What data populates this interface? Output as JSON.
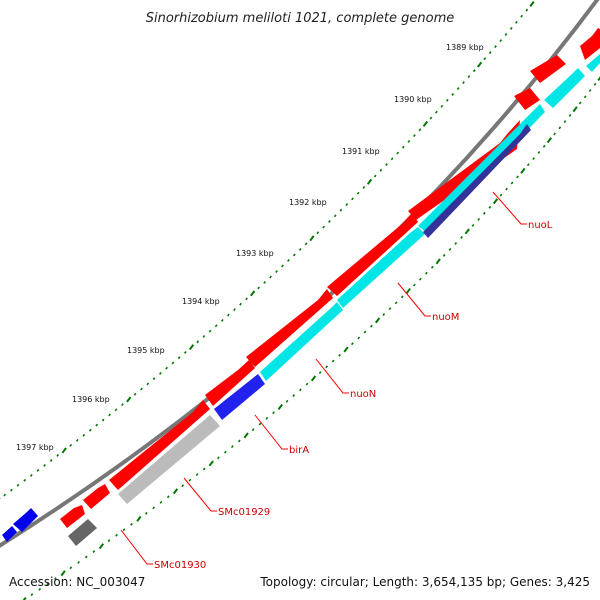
{
  "title": "Sinorhizobium meliloti 1021, complete genome",
  "footer": {
    "accession": "Accession: NC_003047",
    "topology": "Topology: circular; Length: 3,654,135 bp; Genes: 3,425"
  },
  "colors": {
    "backbone": "#777777",
    "forward_gene": "#ff0000",
    "cds_feature": "#00e5e5",
    "selected_gene": "#2222ee",
    "gray_feature": "#bbbbbb",
    "dark_gray_feature": "#666666",
    "navy_feature": "#333399",
    "tick": "#007700",
    "gene_label": "#cc0000"
  },
  "ruler": {
    "unit": "kbp",
    "labels": [
      "1389 kbp",
      "1390 kbp",
      "1391 kbp",
      "1392 kbp",
      "1393 kbp",
      "1394 kbp",
      "1395 kbp",
      "1396 kbp",
      "1397 kbp"
    ]
  },
  "gene_labels": [
    "nuoL",
    "nuoM",
    "nuoN",
    "birA",
    "SMc01929",
    "SMc01930"
  ]
}
